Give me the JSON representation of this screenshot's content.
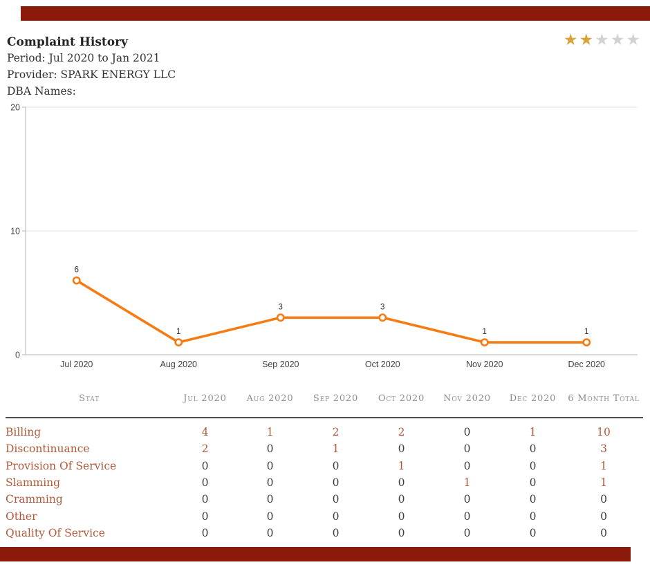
{
  "colors": {
    "accent_red": "#8b1a0a",
    "line_orange": "#f57c14",
    "sienna": "#b05a3a",
    "zero_gray": "#3d3d3d",
    "header_gray": "#8e8e8e",
    "rule_gray": "#4d4d4d",
    "star_gold": "#d9a43b",
    "star_gray": "#d2d2d2",
    "grid_light": "#e8e8e8",
    "axis_gray": "#c4c4c4"
  },
  "header": {
    "title": "Complaint History",
    "period": "Period: Jul 2020 to Jan 2021",
    "provider": "Provider: SPARK ENERGY LLC",
    "dba": "DBA Names:",
    "rating": {
      "stars_total": 5,
      "stars_filled": 2
    }
  },
  "chart_data": {
    "type": "line",
    "title": "",
    "categories": [
      "Jul 2020",
      "Aug 2020",
      "Sep 2020",
      "Oct 2020",
      "Nov 2020",
      "Dec 2020"
    ],
    "values": [
      6,
      1,
      3,
      3,
      1,
      1
    ],
    "ylim": [
      0,
      20
    ],
    "yticks": [
      0,
      10,
      20
    ],
    "grid": true,
    "legend": "none",
    "marker": "open-circle",
    "data_labels": true
  },
  "table": {
    "headers": [
      "Stat",
      "Jul 2020",
      "Aug 2020",
      "Sep 2020",
      "Oct 2020",
      "Nov 2020",
      "Dec 2020",
      "6 Month Total"
    ],
    "rows": [
      {
        "label": "Billing",
        "values": [
          4,
          1,
          2,
          2,
          0,
          1
        ],
        "total": 10
      },
      {
        "label": "Discontinuance",
        "values": [
          2,
          0,
          1,
          0,
          0,
          0
        ],
        "total": 3
      },
      {
        "label": "Provision Of Service",
        "values": [
          0,
          0,
          0,
          1,
          0,
          0
        ],
        "total": 1
      },
      {
        "label": "Slamming",
        "values": [
          0,
          0,
          0,
          0,
          1,
          0
        ],
        "total": 1
      },
      {
        "label": "Cramming",
        "values": [
          0,
          0,
          0,
          0,
          0,
          0
        ],
        "total": 0
      },
      {
        "label": "Other",
        "values": [
          0,
          0,
          0,
          0,
          0,
          0
        ],
        "total": 0
      },
      {
        "label": "Quality Of Service",
        "values": [
          0,
          0,
          0,
          0,
          0,
          0
        ],
        "total": 0
      }
    ]
  }
}
